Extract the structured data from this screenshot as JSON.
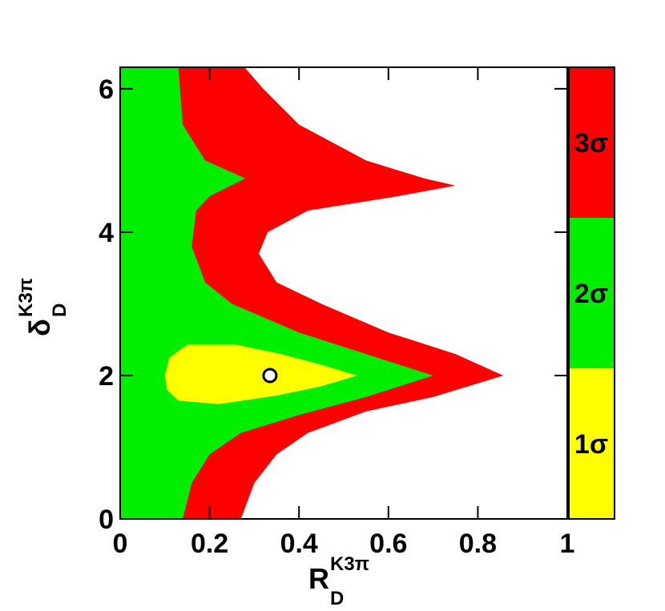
{
  "chart_data": {
    "type": "contour",
    "xlabel": {
      "main": "R",
      "sub": "D",
      "sup": "K3π"
    },
    "ylabel": {
      "main": "δ",
      "sub": "D",
      "sup": "K3π"
    },
    "xlim": [
      0,
      1
    ],
    "ylim": [
      0,
      6.3
    ],
    "xticks": [
      0,
      0.2,
      0.4,
      0.6,
      0.8,
      1
    ],
    "yticks": [
      0,
      2,
      4,
      6
    ],
    "contours": [
      {
        "name": "3σ",
        "color": "#ff0000",
        "x": [
          0,
          0.278,
          0.32,
          0.4,
          0.55,
          0.68,
          0.75,
          0.62,
          0.42,
          0.33,
          0.31,
          0.35,
          0.45,
          0.6,
          0.75,
          0.857,
          0.7,
          0.55,
          0.42,
          0.35,
          0.3,
          0.27,
          0
        ],
        "y": [
          6.3,
          6.3,
          6.0,
          5.5,
          5.0,
          4.75,
          4.65,
          4.5,
          4.3,
          4.0,
          3.7,
          3.3,
          3.0,
          2.6,
          2.3,
          2.0,
          1.7,
          1.5,
          1.2,
          0.9,
          0.5,
          0,
          0
        ]
      },
      {
        "name": "2σ",
        "color": "#00ee00",
        "x": [
          0,
          0.13,
          0.14,
          0.19,
          0.28,
          0.2,
          0.17,
          0.16,
          0.19,
          0.25,
          0.4,
          0.55,
          0.7,
          0.55,
          0.4,
          0.27,
          0.2,
          0.16,
          0.14,
          0
        ],
        "y": [
          6.3,
          6.3,
          5.5,
          5.0,
          4.75,
          4.5,
          4.3,
          3.8,
          3.3,
          3.0,
          2.6,
          2.3,
          2.0,
          1.7,
          1.45,
          1.2,
          0.9,
          0.5,
          0,
          0
        ]
      },
      {
        "name": "1σ",
        "color": "#ffff00",
        "x": [
          0.1,
          0.11,
          0.15,
          0.26,
          0.36,
          0.45,
          0.53,
          0.45,
          0.35,
          0.22,
          0.13,
          0.105
        ],
        "y": [
          2.0,
          2.25,
          2.43,
          2.43,
          2.3,
          2.15,
          2.0,
          1.85,
          1.72,
          1.6,
          1.65,
          1.8
        ]
      }
    ],
    "best_fit": {
      "x": 0.335,
      "y": 2.0
    }
  }
}
